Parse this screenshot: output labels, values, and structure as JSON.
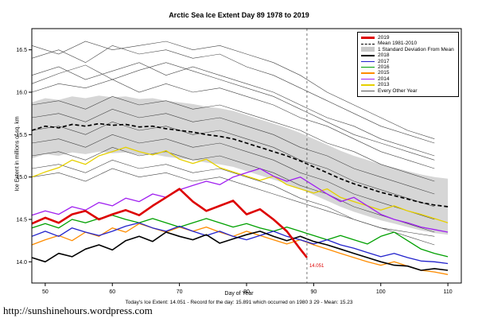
{
  "footer": {
    "text": "Today's Ice Extent: 14.051  - Record for the day: 15.891 which occurred on 1980 3 29  - Mean: 15.23"
  },
  "watermark": {
    "text": "http://sunshinehours.wordpress.com"
  },
  "chart_data": {
    "type": "line",
    "title": "Arctic Sea Ice Extent Day 89 1978 to 2019",
    "xlabel": "Day of Year",
    "ylabel": "Ice Extent in millions of sq. km",
    "xlim": [
      48,
      112
    ],
    "ylim": [
      13.75,
      16.75
    ],
    "grid": false,
    "legend_position": "top-right",
    "std": 0.33,
    "band_color": "#d6d6d6",
    "vline_day": 89,
    "x_ticks": [
      {
        "v": 50,
        "label": "50"
      },
      {
        "v": 60,
        "label": "60"
      },
      {
        "v": 70,
        "label": "70"
      },
      {
        "v": 80,
        "label": "80"
      },
      {
        "v": 90,
        "label": "90"
      },
      {
        "v": 100,
        "label": "100"
      },
      {
        "v": 110,
        "label": "110"
      }
    ],
    "y_ticks": [
      {
        "v": 14.0,
        "label": "14.0"
      },
      {
        "v": 14.5,
        "label": "14.5"
      },
      {
        "v": 15.0,
        "label": "15.0"
      },
      {
        "v": 15.5,
        "label": "15.5"
      },
      {
        "v": 16.0,
        "label": "16.0"
      },
      {
        "v": 16.5,
        "label": "16.5"
      }
    ],
    "x": [
      48,
      50,
      52,
      54,
      56,
      58,
      60,
      62,
      64,
      66,
      68,
      70,
      72,
      74,
      76,
      78,
      80,
      82,
      84,
      86,
      88,
      90,
      92,
      94,
      96,
      98,
      100,
      102,
      104,
      106,
      108,
      110
    ],
    "series": [
      {
        "name": "2013",
        "color": "#e6d000",
        "width": 1.3,
        "values": [
          15.0,
          15.06,
          15.11,
          15.2,
          15.15,
          15.25,
          15.3,
          15.35,
          15.3,
          15.26,
          15.31,
          15.21,
          15.16,
          15.21,
          15.11,
          15.06,
          15.01,
          14.96,
          15.01,
          14.91,
          14.86,
          14.81,
          14.86,
          14.76,
          14.71,
          14.66,
          14.61,
          14.66,
          14.6,
          14.56,
          14.51,
          14.46
        ]
      },
      {
        "name": "2014",
        "color": "#a020f0",
        "width": 1.3,
        "values": [
          14.55,
          14.6,
          14.56,
          14.65,
          14.61,
          14.7,
          14.66,
          14.75,
          14.71,
          14.8,
          14.76,
          14.85,
          14.9,
          14.95,
          14.91,
          15.0,
          15.05,
          15.1,
          15.01,
          14.95,
          15.0,
          14.9,
          14.8,
          14.71,
          14.76,
          14.66,
          14.56,
          14.5,
          14.46,
          14.41,
          14.38,
          14.35
        ]
      },
      {
        "name": "2015",
        "color": "#ff8c00",
        "width": 1.3,
        "values": [
          14.2,
          14.26,
          14.31,
          14.25,
          14.35,
          14.3,
          14.4,
          14.35,
          14.45,
          14.4,
          14.35,
          14.41,
          14.36,
          14.41,
          14.35,
          14.3,
          14.36,
          14.31,
          14.26,
          14.21,
          14.26,
          14.2,
          14.15,
          14.1,
          14.05,
          14.0,
          13.96,
          14.0,
          13.95,
          13.9,
          13.88,
          13.85
        ]
      },
      {
        "name": "2016",
        "color": "#00a000",
        "width": 1.3,
        "values": [
          14.4,
          14.45,
          14.4,
          14.5,
          14.46,
          14.51,
          14.55,
          14.5,
          14.46,
          14.51,
          14.46,
          14.41,
          14.46,
          14.51,
          14.46,
          14.41,
          14.45,
          14.4,
          14.36,
          14.41,
          14.36,
          14.31,
          14.26,
          14.31,
          14.26,
          14.21,
          14.3,
          14.35,
          14.25,
          14.15,
          14.1,
          14.06
        ]
      },
      {
        "name": "2017",
        "color": "#2222cc",
        "width": 1.3,
        "values": [
          14.3,
          14.36,
          14.3,
          14.4,
          14.35,
          14.31,
          14.36,
          14.42,
          14.46,
          14.4,
          14.36,
          14.42,
          14.36,
          14.31,
          14.36,
          14.3,
          14.26,
          14.31,
          14.36,
          14.3,
          14.26,
          14.21,
          14.26,
          14.2,
          14.16,
          14.11,
          14.06,
          14.1,
          14.05,
          14.01,
          14.0,
          13.98
        ]
      },
      {
        "name": "2018",
        "color": "#000000",
        "width": 1.6,
        "values": [
          14.05,
          14.0,
          14.1,
          14.06,
          14.15,
          14.2,
          14.14,
          14.25,
          14.3,
          14.24,
          14.35,
          14.3,
          14.26,
          14.32,
          14.22,
          14.27,
          14.32,
          14.36,
          14.3,
          14.25,
          14.3,
          14.24,
          14.2,
          14.15,
          14.1,
          14.05,
          14.0,
          13.96,
          13.95,
          13.9,
          13.92,
          13.9
        ]
      },
      {
        "name": "Mean 1981-2010",
        "color": "#000000",
        "width": 1.7,
        "dash": "5,3",
        "values": [
          15.55,
          15.6,
          15.58,
          15.62,
          15.6,
          15.63,
          15.61,
          15.62,
          15.59,
          15.6,
          15.57,
          15.55,
          15.53,
          15.5,
          15.48,
          15.45,
          15.4,
          15.35,
          15.3,
          15.25,
          15.19,
          15.12,
          15.05,
          14.98,
          14.92,
          14.87,
          14.82,
          14.78,
          14.74,
          14.7,
          14.67,
          14.65
        ]
      },
      {
        "name": "2019",
        "color": "#dd0000",
        "width": 2.6,
        "x": [
          48,
          50,
          52,
          54,
          56,
          58,
          60,
          62,
          64,
          66,
          68,
          70,
          72,
          74,
          76,
          78,
          80,
          82,
          84,
          86,
          88,
          89
        ],
        "values": [
          14.45,
          14.52,
          14.46,
          14.56,
          14.6,
          14.5,
          14.56,
          14.61,
          14.55,
          14.66,
          14.76,
          14.86,
          14.71,
          14.6,
          14.66,
          14.72,
          14.56,
          14.62,
          14.5,
          14.36,
          14.15,
          14.051
        ]
      }
    ],
    "background": {
      "label": "Every Other Year",
      "color": "#444444",
      "x": [
        48,
        52,
        56,
        60,
        64,
        68,
        72,
        76,
        80,
        84,
        88,
        92,
        96,
        100,
        104,
        108
      ],
      "lines": [
        [
          16.4,
          16.5,
          16.35,
          16.55,
          16.45,
          16.5,
          16.4,
          16.45,
          16.3,
          16.2,
          16.05,
          15.9,
          15.75,
          15.6,
          15.5,
          15.4
        ],
        [
          16.2,
          16.3,
          16.15,
          16.25,
          16.35,
          16.2,
          16.3,
          16.2,
          16.1,
          16.0,
          15.85,
          15.7,
          15.6,
          15.45,
          15.35,
          15.25
        ],
        [
          16.0,
          16.1,
          16.05,
          16.15,
          16.0,
          16.1,
          16.0,
          16.05,
          15.95,
          15.85,
          15.7,
          15.6,
          15.45,
          15.3,
          15.2,
          15.1
        ],
        [
          15.85,
          15.9,
          15.8,
          15.95,
          15.85,
          15.9,
          15.8,
          15.85,
          15.75,
          15.65,
          15.55,
          15.4,
          15.3,
          15.15,
          15.05,
          14.95
        ],
        [
          15.7,
          15.75,
          15.65,
          15.8,
          15.7,
          15.75,
          15.65,
          15.7,
          15.6,
          15.5,
          15.35,
          15.25,
          15.1,
          15.0,
          14.9,
          14.8
        ],
        [
          15.55,
          15.6,
          15.5,
          15.65,
          15.55,
          15.6,
          15.5,
          15.55,
          15.45,
          15.35,
          15.2,
          15.1,
          14.95,
          14.85,
          14.75,
          14.65
        ],
        [
          15.4,
          15.45,
          15.35,
          15.5,
          15.4,
          15.45,
          15.35,
          15.4,
          15.3,
          15.2,
          15.05,
          14.95,
          14.8,
          14.7,
          14.6,
          14.5
        ],
        [
          15.25,
          15.3,
          15.2,
          15.35,
          15.25,
          15.3,
          15.2,
          15.25,
          15.15,
          15.05,
          14.9,
          14.8,
          14.65,
          14.55,
          14.45,
          14.35
        ],
        [
          15.1,
          15.15,
          15.05,
          15.2,
          15.1,
          15.15,
          15.05,
          15.1,
          15.0,
          14.9,
          14.75,
          14.65,
          14.5,
          14.4,
          14.3,
          14.2
        ],
        [
          16.55,
          16.45,
          16.6,
          16.5,
          16.55,
          16.6,
          16.5,
          16.55,
          16.45,
          16.35,
          16.2,
          16.0,
          15.85,
          15.7,
          15.55,
          15.45
        ],
        [
          15.0,
          15.05,
          14.95,
          15.1,
          15.0,
          15.05,
          14.95,
          15.0,
          14.9,
          14.8,
          14.7,
          14.6,
          14.5,
          14.4,
          14.35,
          14.3
        ],
        [
          16.1,
          16.22,
          16.32,
          16.15,
          16.26,
          16.35,
          16.25,
          16.15,
          16.05,
          15.95,
          15.8,
          15.65,
          15.5,
          15.4,
          15.3,
          15.2
        ]
      ]
    },
    "annotations": [
      {
        "x": 89,
        "y": 14.051,
        "text": "14.051",
        "color": "#dd0000"
      }
    ],
    "legend": [
      {
        "label": "2019",
        "color": "#dd0000",
        "type": "thick-line"
      },
      {
        "label": "Mean 1981-2010",
        "color": "#000000",
        "type": "dashed-line"
      },
      {
        "label": "1 Standard Deviation From Mean",
        "color": "#c8c8c8",
        "type": "box"
      },
      {
        "label": "2018",
        "color": "#000000",
        "type": "line"
      },
      {
        "label": "2017",
        "color": "#2222cc",
        "type": "line"
      },
      {
        "label": "2016",
        "color": "#00a000",
        "type": "line"
      },
      {
        "label": "2015",
        "color": "#ff8c00",
        "type": "line"
      },
      {
        "label": "2014",
        "color": "#a020f0",
        "type": "line"
      },
      {
        "label": "2013",
        "color": "#e6d000",
        "type": "line"
      },
      {
        "label": "Every Other Year",
        "color": "#555555",
        "type": "thin-line"
      }
    ]
  }
}
